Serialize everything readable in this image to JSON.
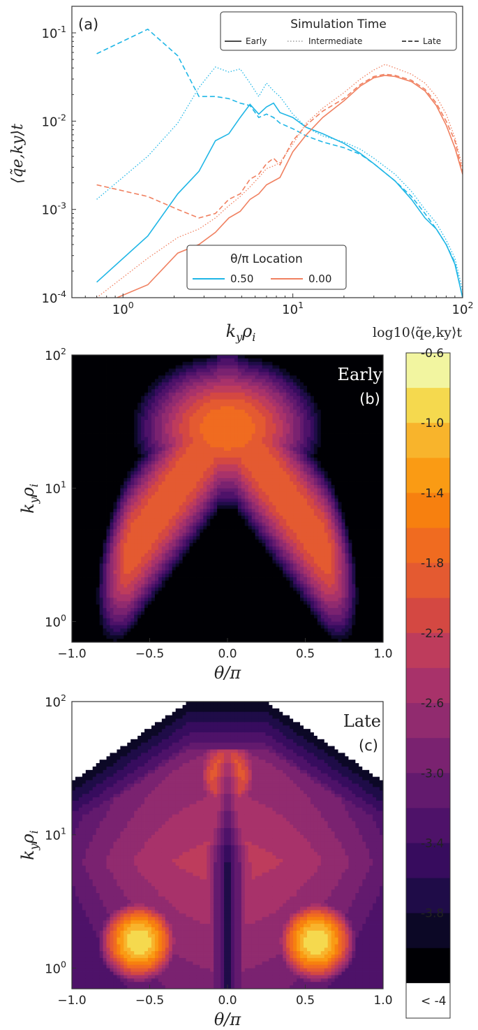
{
  "panel_a": {
    "label": "(a)",
    "xlabel_base": "k",
    "xlabel_sub1": "y",
    "xlabel_mid": "ρ",
    "xlabel_sub2": "i",
    "ylabel": "⟨q̃e,ky⟩t",
    "x_ticks": [
      "10^0",
      "10^1",
      "10^2"
    ],
    "y_ticks": [
      "10^-1",
      "10^-2",
      "10^-3",
      "10^-4"
    ],
    "time_legend": {
      "title": "Simulation Time",
      "entries": [
        {
          "label": "Early",
          "style": "solid"
        },
        {
          "label": "Intermediate",
          "style": "dotted"
        },
        {
          "label": "Late",
          "style": "dashed"
        }
      ]
    },
    "location_legend": {
      "title": "θ/π Location",
      "entries": [
        {
          "label": "0.50",
          "color": "#1fb6e6"
        },
        {
          "label": "0.00",
          "color": "#f08060"
        }
      ]
    }
  },
  "panel_b": {
    "label_line1": "Early",
    "label_line2": "(b)"
  },
  "panel_c": {
    "label_line1": "Late",
    "label_line2": "(c)"
  },
  "heatmap_axes": {
    "xlabel": "θ/π",
    "ylabel_base": "k",
    "ylabel_sub1": "y",
    "ylabel_mid": "ρ",
    "ylabel_sub2": "i",
    "x_ticks": [
      "−1.0",
      "−0.5",
      "0.0",
      "0.5",
      "1.0"
    ],
    "y_ticks": [
      "10^0",
      "10^1",
      "10^2"
    ]
  },
  "colorbar": {
    "title": "log10⟨q̃e,ky⟩t",
    "tick_labels": [
      "-0.6",
      "-1.0",
      "-1.4",
      "-1.8",
      "-2.2",
      "-2.6",
      "-3.0",
      "-3.4",
      "-3.8",
      "< -4"
    ],
    "levels": [
      -3.8,
      -3.6,
      -3.4,
      -3.2,
      -3.0,
      -2.8,
      -2.6,
      -2.4,
      -2.2,
      -2.0,
      -1.8,
      -1.6,
      -1.4,
      -1.2,
      -1.0,
      -0.8,
      -0.6
    ],
    "colors": [
      "#000004",
      "#0c0826",
      "#1f0c48",
      "#370c5e",
      "#4e1269",
      "#631a6e",
      "#7a2270",
      "#912b6f",
      "#a8326a",
      "#be3c5c",
      "#d44842",
      "#e45a31",
      "#f06b20",
      "#f7800f",
      "#fa9b14",
      "#f8b42c",
      "#f5d94e",
      "#f2f5a0"
    ],
    "below_color": "#ffffff"
  },
  "chart_data": [
    {
      "type": "line",
      "title": "",
      "xlabel": "kyρi",
      "ylabel": "⟨q̃e,ky⟩t",
      "xscale": "log",
      "yscale": "log",
      "xlim": [
        0.5,
        100
      ],
      "ylim": [
        0.0001,
        0.2
      ],
      "legend_placement": [
        "top-right",
        "bottom-center"
      ],
      "series": [
        {
          "name": "0.50 Early",
          "color": "#1fb6e6",
          "style": "solid",
          "x": [
            0.7,
            1.4,
            2.1,
            2.8,
            3.5,
            4.2,
            4.9,
            5.6,
            6.3,
            7.0,
            7.7,
            8.4,
            10,
            12,
            15,
            20,
            25,
            30,
            40,
            50,
            60,
            70,
            80,
            90,
            100
          ],
          "y": [
            0.00015,
            0.0005,
            0.0015,
            0.0027,
            0.006,
            0.0072,
            0.011,
            0.0155,
            0.012,
            0.0145,
            0.016,
            0.0125,
            0.011,
            0.0085,
            0.0072,
            0.0056,
            0.0043,
            0.0033,
            0.0021,
            0.0013,
            0.0008,
            0.0006,
            0.0004,
            0.00024,
            0.0001
          ]
        },
        {
          "name": "0.50 Intermediate",
          "color": "#1fb6e6",
          "style": "dotted",
          "x": [
            0.7,
            1.4,
            2.1,
            2.8,
            3.5,
            4.2,
            4.9,
            5.6,
            6.3,
            7.0,
            7.7,
            8.4,
            10,
            12,
            15,
            20,
            25,
            30,
            40,
            50,
            60,
            70,
            80,
            90,
            100
          ],
          "y": [
            0.0013,
            0.004,
            0.0095,
            0.024,
            0.041,
            0.036,
            0.039,
            0.027,
            0.019,
            0.027,
            0.022,
            0.019,
            0.012,
            0.0085,
            0.0068,
            0.0058,
            0.0048,
            0.0038,
            0.0025,
            0.0016,
            0.001,
            0.0007,
            0.00045,
            0.00028,
            0.00012
          ]
        },
        {
          "name": "0.50 Late",
          "color": "#1fb6e6",
          "style": "dashed",
          "x": [
            0.7,
            1.4,
            2.1,
            2.8,
            3.5,
            4.2,
            4.9,
            5.6,
            6.3,
            7.0,
            7.7,
            8.4,
            10,
            12,
            15,
            20,
            25,
            30,
            40,
            50,
            60,
            70,
            80,
            90,
            100
          ],
          "y": [
            0.058,
            0.11,
            0.055,
            0.019,
            0.019,
            0.018,
            0.016,
            0.015,
            0.011,
            0.012,
            0.011,
            0.0095,
            0.0082,
            0.0068,
            0.0058,
            0.005,
            0.0042,
            0.0033,
            0.0021,
            0.0014,
            0.0009,
            0.0006,
            0.0004,
            0.00025,
            0.0001
          ]
        },
        {
          "name": "0.00 Early",
          "color": "#f08060",
          "style": "solid",
          "x": [
            0.7,
            1.4,
            2.1,
            2.8,
            3.5,
            4.2,
            4.9,
            5.6,
            6.3,
            7.0,
            7.7,
            8.4,
            10,
            12,
            15,
            20,
            25,
            30,
            35,
            40,
            50,
            60,
            70,
            80,
            90,
            100
          ],
          "y": [
            8e-05,
            0.00014,
            0.00032,
            0.0004,
            0.00055,
            0.0008,
            0.00095,
            0.0013,
            0.0015,
            0.0019,
            0.0021,
            0.0023,
            0.0045,
            0.007,
            0.011,
            0.017,
            0.025,
            0.031,
            0.033,
            0.032,
            0.028,
            0.022,
            0.015,
            0.009,
            0.005,
            0.0025
          ]
        },
        {
          "name": "0.00 Intermediate",
          "color": "#f08060",
          "style": "dotted",
          "x": [
            0.7,
            1.4,
            2.1,
            2.8,
            3.5,
            4.2,
            4.9,
            5.6,
            6.3,
            7.0,
            7.7,
            8.4,
            10,
            12,
            15,
            20,
            25,
            30,
            35,
            40,
            50,
            60,
            70,
            80,
            90,
            100
          ],
          "y": [
            0.0001,
            0.00028,
            0.00048,
            0.0006,
            0.0008,
            0.0011,
            0.0014,
            0.0018,
            0.0023,
            0.0029,
            0.0031,
            0.0034,
            0.0055,
            0.0095,
            0.014,
            0.021,
            0.03,
            0.038,
            0.044,
            0.04,
            0.034,
            0.027,
            0.019,
            0.012,
            0.0065,
            0.003
          ]
        },
        {
          "name": "0.00 Late",
          "color": "#f08060",
          "style": "dashed",
          "x": [
            0.7,
            1.4,
            2.1,
            2.8,
            3.5,
            4.2,
            4.9,
            5.6,
            6.3,
            7.0,
            7.7,
            8.4,
            10,
            12,
            15,
            20,
            25,
            30,
            35,
            40,
            50,
            60,
            70,
            80,
            90,
            100
          ],
          "y": [
            0.0019,
            0.0014,
            0.001,
            0.0008,
            0.0009,
            0.0013,
            0.0015,
            0.0022,
            0.0025,
            0.0033,
            0.0038,
            0.0032,
            0.006,
            0.009,
            0.013,
            0.018,
            0.026,
            0.032,
            0.034,
            0.033,
            0.029,
            0.023,
            0.016,
            0.01,
            0.006,
            0.0026
          ]
        }
      ]
    },
    {
      "type": "heatmap",
      "title": "",
      "panel": "Early (b)",
      "xlabel": "θ/π",
      "ylabel": "kyρi",
      "xlim": [
        -1.0,
        1.0
      ],
      "ylim": [
        0.7,
        100
      ],
      "yscale": "log",
      "description_values": "log10 heat flux contours; peak ~ -1.3 near θ/π=0, kyρi≈30"
    },
    {
      "type": "heatmap",
      "title": "",
      "panel": "Late (c)",
      "xlabel": "θ/π",
      "ylabel": "kyρi",
      "xlim": [
        -1.0,
        1.0
      ],
      "ylim": [
        0.7,
        100
      ],
      "yscale": "log",
      "description_values": "log10 heat flux contours; peaks ~ -0.6 near θ/π=±0.55, kyρi≈1.4"
    }
  ]
}
